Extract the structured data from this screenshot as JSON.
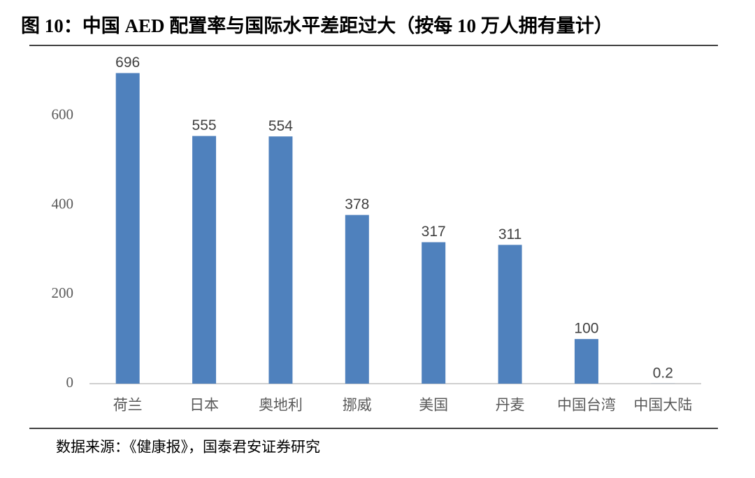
{
  "chart_data": {
    "type": "bar",
    "title": "图 10：中国 AED 配置率与国际水平差距过大（按每 10 万人拥有量计）",
    "categories": [
      "荷兰",
      "日本",
      "奥地利",
      "挪威",
      "美国",
      "丹麦",
      "中国台湾",
      "中国大陆"
    ],
    "values": [
      696,
      555,
      554,
      378,
      317,
      311,
      100,
      0.2
    ],
    "color": "#4f81bd",
    "ylim": [
      0,
      700
    ],
    "yticks": [
      0,
      200,
      400,
      600
    ],
    "grid": false,
    "source": "数据来源：《健康报》，国泰君安证券研究"
  }
}
